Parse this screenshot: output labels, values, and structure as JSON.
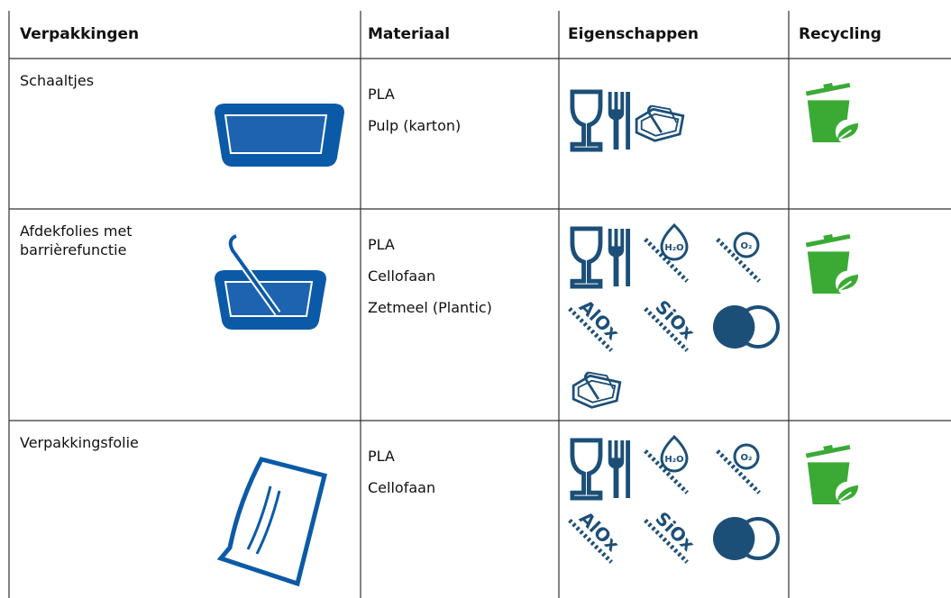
{
  "table": {
    "header": [
      "Verpakkingen",
      "Materiaal",
      "Eigenschappen",
      "Recycling"
    ],
    "rows": [
      {
        "name": "Schaaltjes",
        "materials": [
          "PLA",
          "Pulp (karton)"
        ]
      },
      {
        "name": "Afdekfolies met barrièrefunctie",
        "materials": [
          "PLA",
          "Cellofaan",
          "Zetmeel (Plantic)"
        ]
      },
      {
        "name": "Verpakkingsfolie",
        "materials": [
          "PLA",
          "Cellofaan"
        ]
      }
    ]
  },
  "icon_texts": [
    "H₂O",
    "O₂",
    "AlOx",
    "SiOx"
  ]
}
